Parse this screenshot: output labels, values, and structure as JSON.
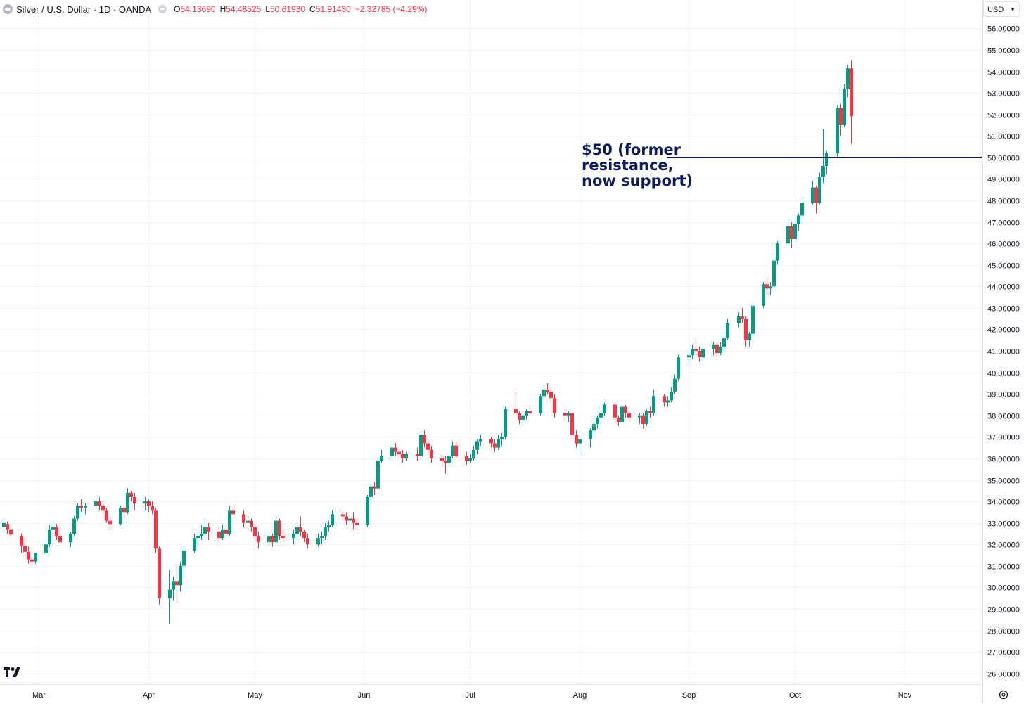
{
  "legend": {
    "title": "Silver / U.S. Dollar · 1D · OANDA",
    "open_key": "O",
    "open": "54.13690",
    "high_key": "H",
    "high": "54.48525",
    "low_key": "L",
    "low": "50.61930",
    "close_key": "C",
    "close": "51.91430",
    "change": "−2.32785 (−4.29%)"
  },
  "currency_selector": {
    "label": "USD"
  },
  "annotation": {
    "lines": [
      "$50 (former",
      "resistance,",
      "now support)"
    ]
  },
  "colors": {
    "up": "#089981",
    "down": "#f23645",
    "grid": "#f0f3fa",
    "annotation": "#0c1a56",
    "text": "#131722"
  },
  "icons": {
    "logo": "tradingview-logo",
    "settings": "settings-gear-icon",
    "dropdown": "chevron-down-icon"
  },
  "chart_data": {
    "type": "candlestick",
    "title": "Silver / U.S. Dollar · 1D · OANDA",
    "ylim": [
      25.5,
      56.6
    ],
    "y_tick_labels": [
      "26.00000",
      "27.00000",
      "28.00000",
      "29.00000",
      "30.00000",
      "31.00000",
      "32.00000",
      "33.00000",
      "34.00000",
      "35.00000",
      "36.00000",
      "37.00000",
      "38.00000",
      "39.00000",
      "40.00000",
      "41.00000",
      "42.00000",
      "43.00000",
      "44.00000",
      "45.00000",
      "46.00000",
      "47.00000",
      "48.00000",
      "49.00000",
      "50.00000",
      "51.00000",
      "52.00000",
      "53.00000",
      "54.00000",
      "55.00000",
      "56.00000"
    ],
    "x_tick_labels": [
      "Mar",
      "Apr",
      "May",
      "Jun",
      "Jul",
      "Aug",
      "Sep",
      "Oct",
      "Nov"
    ],
    "x_range": [
      "2025-02-18",
      "2025-11-23"
    ],
    "month_starts": [
      "2025-03-01",
      "2025-04-01",
      "2025-05-01",
      "2025-06-01",
      "2025-07-01",
      "2025-08-01",
      "2025-09-01",
      "2025-10-01",
      "2025-11-01"
    ],
    "horizontal_line": {
      "value": 50.0
    },
    "grid": true,
    "ohlc": [
      [
        "2025-02-19",
        32.8,
        33.2,
        32.6,
        33.0
      ],
      [
        "2025-02-20",
        32.95,
        33.05,
        32.5,
        32.7
      ],
      [
        "2025-02-21",
        32.7,
        32.85,
        32.3,
        32.45
      ],
      [
        "2025-02-24",
        32.4,
        32.5,
        31.6,
        31.95
      ],
      [
        "2025-02-25",
        31.95,
        32.3,
        31.7,
        31.65
      ],
      [
        "2025-02-26",
        31.65,
        31.9,
        31.1,
        31.3
      ],
      [
        "2025-02-27",
        31.3,
        31.4,
        30.9,
        31.2
      ],
      [
        "2025-02-28",
        31.2,
        31.5,
        31.1,
        31.6
      ],
      [
        "2025-03-03",
        31.6,
        32.2,
        31.5,
        32.0
      ],
      [
        "2025-03-04",
        32.0,
        32.9,
        31.9,
        32.7
      ],
      [
        "2025-03-05",
        32.7,
        33.0,
        32.5,
        32.8
      ],
      [
        "2025-03-06",
        32.8,
        32.95,
        32.2,
        32.4
      ],
      [
        "2025-03-07",
        32.4,
        32.7,
        32.0,
        32.1
      ],
      [
        "2025-03-10",
        32.1,
        32.6,
        31.9,
        32.5
      ],
      [
        "2025-03-11",
        32.5,
        33.3,
        32.4,
        33.2
      ],
      [
        "2025-03-12",
        33.2,
        33.9,
        33.1,
        33.8
      ],
      [
        "2025-03-13",
        33.8,
        34.1,
        33.5,
        33.7
      ],
      [
        "2025-03-14",
        33.7,
        33.9,
        33.4,
        33.8
      ],
      [
        "2025-03-17",
        33.8,
        34.3,
        33.6,
        34.0
      ],
      [
        "2025-03-18",
        34.0,
        34.2,
        33.6,
        33.8
      ],
      [
        "2025-03-19",
        33.8,
        34.0,
        33.4,
        33.6
      ],
      [
        "2025-03-20",
        33.6,
        33.7,
        33.0,
        33.1
      ],
      [
        "2025-03-21",
        33.1,
        33.3,
        32.7,
        32.95
      ],
      [
        "2025-03-24",
        32.95,
        33.8,
        32.9,
        33.7
      ],
      [
        "2025-03-25",
        33.7,
        33.8,
        33.2,
        33.5
      ],
      [
        "2025-03-26",
        33.5,
        34.6,
        33.4,
        34.4
      ],
      [
        "2025-03-27",
        34.4,
        34.5,
        34.0,
        34.2
      ],
      [
        "2025-03-28",
        34.2,
        34.4,
        33.6,
        33.9
      ],
      [
        "2025-03-31",
        33.9,
        34.2,
        33.6,
        34.0
      ],
      [
        "2025-04-01",
        34.0,
        34.1,
        33.5,
        33.8
      ],
      [
        "2025-04-02",
        33.8,
        34.0,
        33.4,
        33.6
      ],
      [
        "2025-04-03",
        33.6,
        33.7,
        31.6,
        31.8
      ],
      [
        "2025-04-04",
        31.8,
        31.9,
        29.2,
        29.5
      ],
      [
        "2025-04-07",
        29.5,
        30.8,
        28.3,
        29.9
      ],
      [
        "2025-04-08",
        29.9,
        30.5,
        29.4,
        30.3
      ],
      [
        "2025-04-09",
        30.3,
        31.1,
        29.3,
        30.1
      ],
      [
        "2025-04-10",
        30.1,
        31.2,
        29.8,
        31.0
      ],
      [
        "2025-04-11",
        31.0,
        31.9,
        30.9,
        31.7
      ],
      [
        "2025-04-14",
        31.7,
        32.5,
        31.6,
        32.3
      ],
      [
        "2025-04-15",
        32.3,
        32.5,
        32.0,
        32.4
      ],
      [
        "2025-04-16",
        32.4,
        32.9,
        32.2,
        32.5
      ],
      [
        "2025-04-17",
        32.5,
        33.2,
        32.3,
        32.8
      ],
      [
        "2025-04-18",
        32.8,
        33.0,
        32.2,
        32.6
      ],
      [
        "2025-04-21",
        32.6,
        32.8,
        32.1,
        32.3
      ],
      [
        "2025-04-22",
        32.3,
        32.9,
        32.2,
        32.7
      ],
      [
        "2025-04-23",
        32.7,
        32.9,
        32.4,
        32.5
      ],
      [
        "2025-04-24",
        32.5,
        33.8,
        32.4,
        33.6
      ],
      [
        "2025-04-25",
        33.6,
        33.8,
        33.2,
        33.4
      ],
      [
        "2025-04-28",
        33.4,
        33.6,
        32.8,
        33.0
      ],
      [
        "2025-04-29",
        33.0,
        33.3,
        32.7,
        33.1
      ],
      [
        "2025-04-30",
        33.1,
        33.2,
        32.6,
        32.8
      ],
      [
        "2025-05-01",
        32.8,
        32.95,
        32.2,
        32.4
      ],
      [
        "2025-05-02",
        32.4,
        32.6,
        31.8,
        32.1
      ],
      [
        "2025-05-05",
        32.1,
        32.6,
        32.0,
        32.4
      ],
      [
        "2025-05-06",
        32.4,
        32.5,
        31.9,
        32.1
      ],
      [
        "2025-05-07",
        32.1,
        33.3,
        32.0,
        33.1
      ],
      [
        "2025-05-08",
        33.1,
        33.2,
        32.2,
        32.4
      ],
      [
        "2025-05-09",
        32.4,
        32.7,
        32.1,
        32.3
      ],
      [
        "2025-05-12",
        32.3,
        32.7,
        32.0,
        32.5
      ],
      [
        "2025-05-13",
        32.5,
        32.9,
        32.2,
        32.8
      ],
      [
        "2025-05-14",
        32.8,
        33.3,
        32.4,
        32.6
      ],
      [
        "2025-05-15",
        32.6,
        32.7,
        32.1,
        32.3
      ],
      [
        "2025-05-16",
        32.3,
        32.5,
        31.8,
        32.0
      ],
      [
        "2025-05-19",
        32.0,
        32.5,
        31.9,
        32.3
      ],
      [
        "2025-05-20",
        32.3,
        32.6,
        32.0,
        32.4
      ],
      [
        "2025-05-21",
        32.4,
        33.0,
        32.2,
        32.8
      ],
      [
        "2025-05-22",
        32.8,
        33.1,
        32.6,
        32.9
      ],
      [
        "2025-05-23",
        32.9,
        33.6,
        32.8,
        33.4
      ],
      [
        "2025-05-26",
        33.4,
        33.6,
        33.1,
        33.3
      ],
      [
        "2025-05-27",
        33.3,
        33.5,
        32.9,
        33.1
      ],
      [
        "2025-05-28",
        33.1,
        33.4,
        32.8,
        33.2
      ],
      [
        "2025-05-29",
        33.2,
        33.5,
        32.7,
        33.0
      ],
      [
        "2025-05-30",
        33.0,
        33.2,
        32.7,
        32.9
      ],
      [
        "2025-06-02",
        32.9,
        34.3,
        32.8,
        34.2
      ],
      [
        "2025-06-03",
        34.2,
        34.8,
        34.0,
        34.7
      ],
      [
        "2025-06-04",
        34.7,
        34.9,
        34.3,
        34.6
      ],
      [
        "2025-06-05",
        34.6,
        36.1,
        34.5,
        35.9
      ],
      [
        "2025-06-06",
        35.9,
        36.4,
        35.8,
        36.1
      ],
      [
        "2025-06-09",
        36.1,
        36.7,
        35.9,
        36.5
      ],
      [
        "2025-06-10",
        36.5,
        36.7,
        36.1,
        36.3
      ],
      [
        "2025-06-11",
        36.3,
        36.5,
        36.0,
        36.2
      ],
      [
        "2025-06-12",
        36.2,
        36.4,
        35.8,
        36.0
      ],
      [
        "2025-06-13",
        36.0,
        36.3,
        35.9,
        36.2
      ],
      [
        "2025-06-16",
        36.2,
        36.5,
        35.9,
        36.1
      ],
      [
        "2025-06-17",
        36.1,
        37.3,
        36.0,
        37.1
      ],
      [
        "2025-06-18",
        37.1,
        37.3,
        36.5,
        36.7
      ],
      [
        "2025-06-19",
        36.7,
        36.9,
        36.2,
        36.4
      ],
      [
        "2025-06-20",
        36.4,
        36.6,
        35.8,
        36.0
      ],
      [
        "2025-06-23",
        36.0,
        36.2,
        35.6,
        35.9
      ],
      [
        "2025-06-24",
        35.9,
        36.1,
        35.3,
        35.8
      ],
      [
        "2025-06-25",
        35.8,
        36.2,
        35.6,
        36.1
      ],
      [
        "2025-06-26",
        36.1,
        36.8,
        36.0,
        36.6
      ],
      [
        "2025-06-27",
        36.6,
        36.8,
        36.0,
        36.1
      ],
      [
        "2025-06-30",
        36.1,
        36.3,
        35.7,
        35.9
      ],
      [
        "2025-07-01",
        35.9,
        36.2,
        35.8,
        36.0
      ],
      [
        "2025-07-02",
        36.0,
        36.6,
        35.9,
        36.4
      ],
      [
        "2025-07-03",
        36.4,
        36.9,
        36.2,
        36.8
      ],
      [
        "2025-07-04",
        36.8,
        37.1,
        36.6,
        36.9
      ],
      [
        "2025-07-07",
        36.9,
        37.0,
        36.5,
        36.7
      ],
      [
        "2025-07-08",
        36.7,
        36.9,
        36.3,
        36.5
      ],
      [
        "2025-07-09",
        36.5,
        37.1,
        36.4,
        36.9
      ],
      [
        "2025-07-10",
        36.9,
        37.2,
        36.6,
        37.0
      ],
      [
        "2025-07-11",
        37.0,
        38.4,
        36.9,
        38.3
      ],
      [
        "2025-07-14",
        38.3,
        39.1,
        38.0,
        38.1
      ],
      [
        "2025-07-15",
        38.1,
        38.2,
        37.6,
        37.8
      ],
      [
        "2025-07-16",
        37.8,
        38.1,
        37.5,
        38.0
      ],
      [
        "2025-07-17",
        38.0,
        38.3,
        37.8,
        38.2
      ],
      [
        "2025-07-18",
        38.2,
        38.4,
        38.0,
        38.1
      ],
      [
        "2025-07-21",
        38.1,
        39.0,
        38.0,
        38.9
      ],
      [
        "2025-07-22",
        38.9,
        39.4,
        38.8,
        39.2
      ],
      [
        "2025-07-23",
        39.2,
        39.5,
        39.0,
        39.1
      ],
      [
        "2025-07-24",
        39.1,
        39.3,
        38.6,
        38.8
      ],
      [
        "2025-07-25",
        38.8,
        39.0,
        37.9,
        38.1
      ],
      [
        "2025-07-28",
        38.1,
        38.3,
        37.8,
        38.0
      ],
      [
        "2025-07-29",
        38.0,
        38.2,
        37.7,
        38.1
      ],
      [
        "2025-07-30",
        38.1,
        38.2,
        36.9,
        37.1
      ],
      [
        "2025-07-31",
        37.1,
        37.3,
        36.5,
        36.7
      ],
      [
        "2025-08-01",
        36.7,
        37.0,
        36.2,
        36.9
      ],
      [
        "2025-08-04",
        36.9,
        37.4,
        36.5,
        37.3
      ],
      [
        "2025-08-05",
        37.3,
        37.7,
        37.1,
        37.6
      ],
      [
        "2025-08-06",
        37.6,
        38.0,
        37.4,
        37.9
      ],
      [
        "2025-08-07",
        37.9,
        38.3,
        37.7,
        38.1
      ],
      [
        "2025-08-08",
        38.1,
        38.6,
        38.0,
        38.5
      ],
      [
        "2025-08-11",
        38.5,
        38.6,
        37.7,
        37.9
      ],
      [
        "2025-08-12",
        37.9,
        38.0,
        37.5,
        37.7
      ],
      [
        "2025-08-13",
        37.7,
        38.5,
        37.6,
        38.4
      ],
      [
        "2025-08-14",
        38.4,
        38.5,
        37.9,
        38.1
      ],
      [
        "2025-08-15",
        38.1,
        38.2,
        37.7,
        37.9
      ],
      [
        "2025-08-18",
        37.9,
        38.1,
        37.6,
        38.0
      ],
      [
        "2025-08-19",
        38.0,
        38.1,
        37.4,
        37.6
      ],
      [
        "2025-08-20",
        37.6,
        38.3,
        37.5,
        38.2
      ],
      [
        "2025-08-21",
        38.2,
        38.4,
        37.9,
        38.1
      ],
      [
        "2025-08-22",
        38.1,
        39.2,
        38.0,
        38.9
      ],
      [
        "2025-08-25",
        38.9,
        39.0,
        38.4,
        38.6
      ],
      [
        "2025-08-26",
        38.6,
        38.9,
        38.4,
        38.7
      ],
      [
        "2025-08-27",
        38.7,
        39.3,
        38.6,
        39.1
      ],
      [
        "2025-08-28",
        39.1,
        39.9,
        39.0,
        39.7
      ],
      [
        "2025-08-29",
        39.7,
        40.8,
        39.6,
        40.7
      ],
      [
        "2025-09-01",
        40.7,
        41.0,
        40.4,
        40.8
      ],
      [
        "2025-09-02",
        40.8,
        41.3,
        40.6,
        41.1
      ],
      [
        "2025-09-03",
        41.1,
        41.5,
        40.8,
        41.0
      ],
      [
        "2025-09-04",
        41.0,
        41.2,
        40.5,
        40.7
      ],
      [
        "2025-09-05",
        40.7,
        41.2,
        40.5,
        41.1
      ],
      [
        "2025-09-08",
        41.1,
        41.4,
        40.8,
        41.3
      ],
      [
        "2025-09-09",
        41.3,
        41.4,
        40.7,
        40.9
      ],
      [
        "2025-09-10",
        40.9,
        41.4,
        40.8,
        41.2
      ],
      [
        "2025-09-11",
        41.2,
        41.8,
        41.0,
        41.6
      ],
      [
        "2025-09-12",
        41.6,
        42.5,
        41.5,
        42.3
      ],
      [
        "2025-09-15",
        42.3,
        42.8,
        42.1,
        42.6
      ],
      [
        "2025-09-16",
        42.6,
        43.0,
        42.3,
        42.5
      ],
      [
        "2025-09-17",
        42.5,
        42.6,
        41.2,
        41.5
      ],
      [
        "2025-09-18",
        41.5,
        41.9,
        41.2,
        41.8
      ],
      [
        "2025-09-19",
        41.8,
        43.2,
        41.7,
        43.1
      ],
      [
        "2025-09-22",
        43.1,
        44.2,
        43.0,
        44.1
      ],
      [
        "2025-09-23",
        44.1,
        44.4,
        43.6,
        43.9
      ],
      [
        "2025-09-24",
        43.9,
        44.2,
        43.6,
        44.0
      ],
      [
        "2025-09-25",
        44.0,
        45.4,
        43.9,
        45.2
      ],
      [
        "2025-09-26",
        45.2,
        46.1,
        45.0,
        46.0
      ],
      [
        "2025-09-29",
        46.0,
        47.1,
        45.9,
        46.8
      ],
      [
        "2025-09-30",
        46.8,
        47.0,
        45.8,
        46.2
      ],
      [
        "2025-10-01",
        46.2,
        47.1,
        46.0,
        46.9
      ],
      [
        "2025-10-02",
        46.9,
        47.4,
        46.6,
        47.3
      ],
      [
        "2025-10-03",
        47.3,
        48.1,
        47.1,
        47.9
      ],
      [
        "2025-10-06",
        47.9,
        48.9,
        47.8,
        48.6
      ],
      [
        "2025-10-07",
        48.6,
        48.7,
        47.4,
        47.9
      ],
      [
        "2025-10-08",
        47.9,
        49.3,
        47.8,
        49.1
      ],
      [
        "2025-10-09",
        49.1,
        51.3,
        48.8,
        49.6
      ],
      [
        "2025-10-10",
        49.6,
        50.3,
        49.2,
        50.2
      ],
      [
        "2025-10-13",
        50.2,
        52.4,
        50.0,
        52.3
      ],
      [
        "2025-10-14",
        52.3,
        52.5,
        51.0,
        51.5
      ],
      [
        "2025-10-15",
        51.5,
        53.4,
        51.4,
        53.2
      ],
      [
        "2025-10-16",
        53.2,
        54.3,
        52.8,
        54.14
      ],
      [
        "2025-10-17",
        54.14,
        54.49,
        50.62,
        51.91
      ]
    ]
  }
}
